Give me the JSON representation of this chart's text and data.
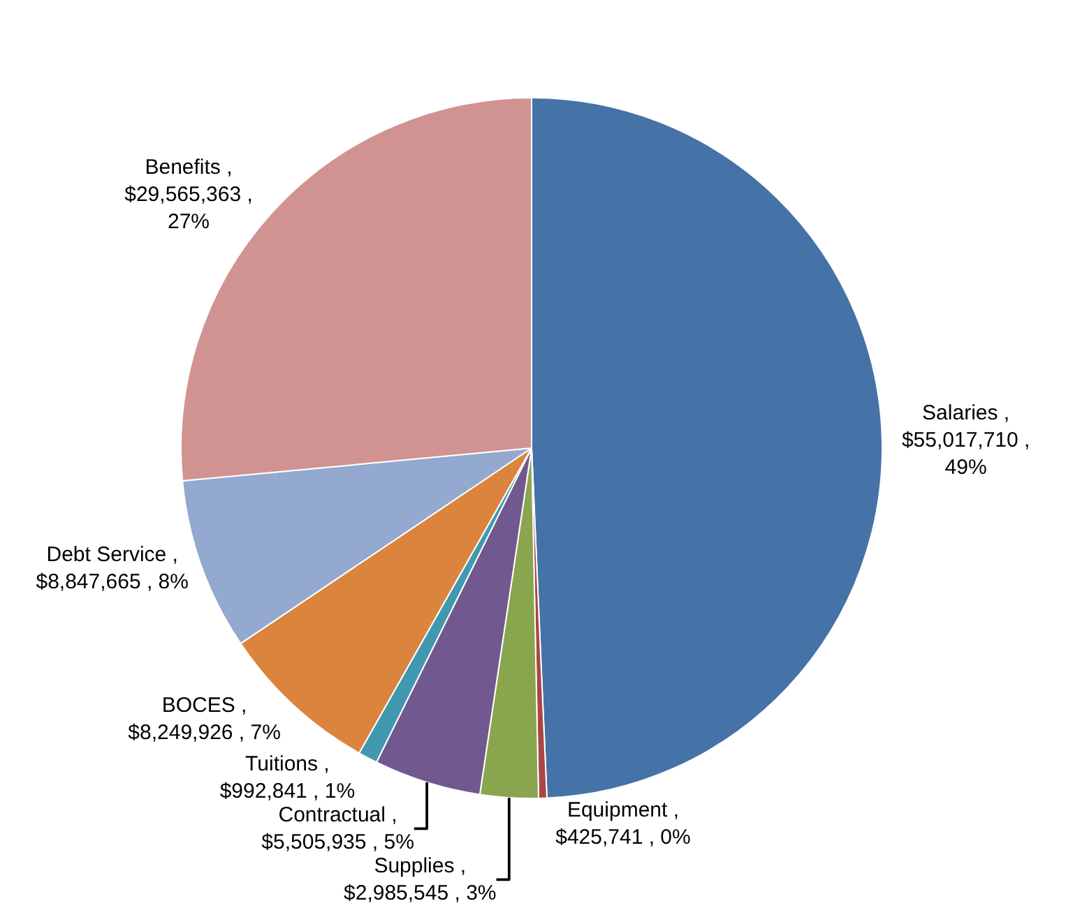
{
  "chart_data": {
    "type": "pie",
    "categories": [
      "Salaries",
      "Equipment",
      "Supplies",
      "Contractual",
      "Tuitions",
      "BOCES",
      "Debt Service",
      "Benefits"
    ],
    "values": [
      55017710,
      425741,
      2985545,
      5505935,
      992841,
      8249926,
      8847665,
      29565363
    ],
    "colors": [
      "#4572a7",
      "#aa4643",
      "#89a54e",
      "#71588f",
      "#4198af",
      "#db843d",
      "#93a9cf",
      "#d19392"
    ],
    "value_labels": [
      ", $55,017,710 , 49%",
      ", $425,741 , 0%",
      ", $2,985,545 , 3%",
      ", $5,505,935 , 5%",
      ", $992,841 , 1%",
      ", $8,249,926 , 7%",
      ", $8,847,665 , 8%",
      ", $29,565,363 , 27%"
    ]
  }
}
